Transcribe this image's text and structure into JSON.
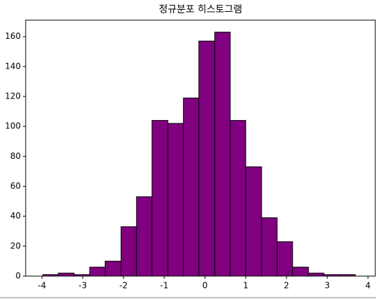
{
  "chart_data": {
    "type": "histogram",
    "title": "정규분포 히스토그램",
    "bins": [
      -3.98,
      -3.6,
      -3.21,
      -2.83,
      -2.45,
      -2.06,
      -1.68,
      -1.3,
      -0.91,
      -0.53,
      -0.15,
      0.24,
      0.62,
      1.0,
      1.39,
      1.77,
      2.15,
      2.54,
      2.92,
      3.3,
      3.69
    ],
    "values": [
      1,
      2,
      1,
      6,
      10,
      33,
      53,
      104,
      102,
      119,
      157,
      163,
      104,
      73,
      39,
      23,
      6,
      2,
      1,
      1
    ],
    "color": "#800080",
    "edgecolor": "#000000",
    "xlim": [
      -4.4,
      4.18
    ],
    "xticks": [
      -4,
      -3,
      -2,
      -1,
      0,
      1,
      2,
      3,
      4
    ],
    "ylim": [
      0,
      171
    ],
    "yticks": [
      0,
      20,
      40,
      60,
      80,
      100,
      120,
      140,
      160
    ]
  }
}
